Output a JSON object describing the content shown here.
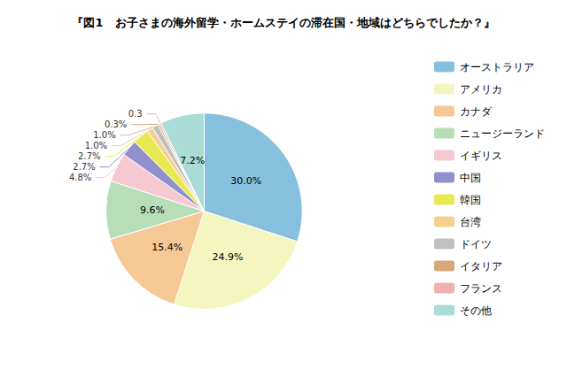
{
  "chart_data": {
    "type": "pie",
    "title": "『図1　お子さまの海外留学・ホームステイの滞在国・地域はどちらでしたか？』",
    "categories": [
      "オーストラリア",
      "アメリカ",
      "カナダ",
      "ニュージーランド",
      "イギリス",
      "中国",
      "韓国",
      "台湾",
      "ドイツ",
      "イタリア",
      "フランス",
      "その他"
    ],
    "values": [
      30.0,
      24.9,
      15.4,
      9.6,
      4.8,
      2.7,
      2.7,
      1.0,
      1.0,
      0.3,
      0.3,
      7.2
    ],
    "value_labels": [
      "30.0%",
      "24.9%",
      "15.4%",
      "9.6%",
      "4.8%",
      "2.7%",
      "2.7%",
      "1.0%",
      "1.0%",
      "0.3%",
      "0.3",
      "7.2%"
    ],
    "colors": [
      "#87BFDE",
      "#F5F5C0",
      "#F5C896",
      "#B8DEB8",
      "#F5C8D2",
      "#9090CC",
      "#E8E850",
      "#F5D090",
      "#C0C0C0",
      "#D4A878",
      "#F0B0B0",
      "#A8DCD4"
    ],
    "data_labels": true,
    "legend": "right"
  }
}
